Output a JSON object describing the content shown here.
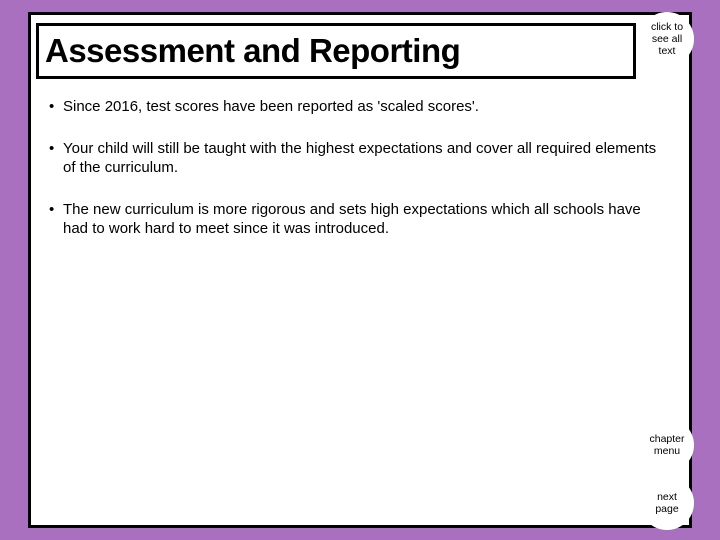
{
  "colors": {
    "background": "#a970c0",
    "panel_bg": "#ffffff",
    "border": "#000000",
    "text": "#000000",
    "button_bg": "#ffffff"
  },
  "title": "Assessment and Reporting",
  "bullets": [
    "Since 2016, test scores have been reported as 'scaled scores'.",
    "Your child will still be taught with the highest expectations and cover all required elements of the curriculum.",
    "The new curriculum is more rigorous and sets high expectations which all schools have had to work hard to meet since it was introduced."
  ],
  "buttons": {
    "see_all": "click to\nsee all\ntext",
    "chapter": "chapter\nmenu",
    "next": "next\npage"
  }
}
